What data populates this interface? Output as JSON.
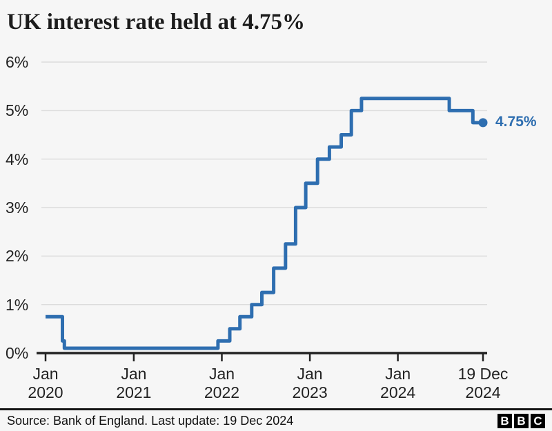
{
  "header": {
    "title": "UK interest rate held at 4.75%"
  },
  "chart_data": {
    "type": "line",
    "step": true,
    "title": "UK interest rate held at 4.75%",
    "xlabel": "",
    "ylabel": "",
    "ylim": [
      0,
      6
    ],
    "grid": "horizontal",
    "legend": "none",
    "colors": {
      "line": "#2e6eb0",
      "grid": "#dcdcdc",
      "axis": "#222222",
      "text": "#222222",
      "background": "#f6f6f6"
    },
    "x_axis": {
      "start_date": "2020-01-01",
      "end_date": "2024-12-19"
    },
    "y_ticks": [
      {
        "label": "0%",
        "value": 0
      },
      {
        "label": "1%",
        "value": 1
      },
      {
        "label": "2%",
        "value": 2
      },
      {
        "label": "3%",
        "value": 3
      },
      {
        "label": "4%",
        "value": 4
      },
      {
        "label": "5%",
        "value": 5
      },
      {
        "label": "6%",
        "value": 6
      }
    ],
    "x_ticks": [
      {
        "line1": "Jan",
        "line2": "2020",
        "date": "2020-01-01"
      },
      {
        "line1": "Jan",
        "line2": "2021",
        "date": "2021-01-01"
      },
      {
        "line1": "Jan",
        "line2": "2022",
        "date": "2022-01-01"
      },
      {
        "line1": "Jan",
        "line2": "2023",
        "date": "2023-01-01"
      },
      {
        "line1": "Jan",
        "line2": "2024",
        "date": "2024-01-01"
      },
      {
        "line1": "19 Dec",
        "line2": "2024",
        "date": "2024-12-19"
      }
    ],
    "series": [
      {
        "name": "UK interest rate",
        "color": "#2e6eb0",
        "points": [
          {
            "date": "2020-01-01",
            "rate": 0.75
          },
          {
            "date": "2020-03-11",
            "rate": 0.25
          },
          {
            "date": "2020-03-19",
            "rate": 0.1
          },
          {
            "date": "2021-12-16",
            "rate": 0.25
          },
          {
            "date": "2022-02-03",
            "rate": 0.5
          },
          {
            "date": "2022-03-17",
            "rate": 0.75
          },
          {
            "date": "2022-05-05",
            "rate": 1.0
          },
          {
            "date": "2022-06-16",
            "rate": 1.25
          },
          {
            "date": "2022-08-04",
            "rate": 1.75
          },
          {
            "date": "2022-09-22",
            "rate": 2.25
          },
          {
            "date": "2022-11-03",
            "rate": 3.0
          },
          {
            "date": "2022-12-15",
            "rate": 3.5
          },
          {
            "date": "2023-02-02",
            "rate": 4.0
          },
          {
            "date": "2023-03-23",
            "rate": 4.25
          },
          {
            "date": "2023-05-11",
            "rate": 4.5
          },
          {
            "date": "2023-06-22",
            "rate": 5.0
          },
          {
            "date": "2023-08-03",
            "rate": 5.25
          },
          {
            "date": "2024-08-01",
            "rate": 5.0
          },
          {
            "date": "2024-11-07",
            "rate": 4.75
          }
        ]
      }
    ],
    "end_point": {
      "date": "2024-12-19",
      "rate": 4.75,
      "label": "4.75%"
    }
  },
  "footer": {
    "source": "Source: Bank of England. Last update: 19 Dec 2024",
    "logo": [
      "B",
      "B",
      "C"
    ]
  }
}
